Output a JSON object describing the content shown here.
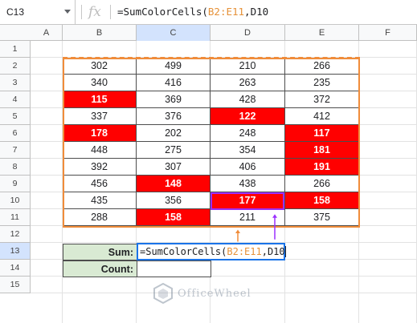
{
  "formula_bar": {
    "name_box": "C13",
    "fx_label": "fx",
    "formula_prefix": "=SumColorCells(",
    "formula_ref": "B2:E11",
    "formula_suffix": ",D10"
  },
  "columns": [
    "A",
    "B",
    "C",
    "D",
    "E",
    "F"
  ],
  "rows": [
    "1",
    "2",
    "3",
    "4",
    "5",
    "6",
    "7",
    "8",
    "9",
    "10",
    "11",
    "12",
    "13",
    "14",
    "15"
  ],
  "table": [
    [
      {
        "v": "302"
      },
      {
        "v": "499"
      },
      {
        "v": "210"
      },
      {
        "v": "266"
      }
    ],
    [
      {
        "v": "340"
      },
      {
        "v": "416"
      },
      {
        "v": "263"
      },
      {
        "v": "235"
      }
    ],
    [
      {
        "v": "115",
        "red": true
      },
      {
        "v": "369"
      },
      {
        "v": "428"
      },
      {
        "v": "372"
      }
    ],
    [
      {
        "v": "337"
      },
      {
        "v": "376"
      },
      {
        "v": "122",
        "red": true
      },
      {
        "v": "412"
      }
    ],
    [
      {
        "v": "178",
        "red": true
      },
      {
        "v": "202"
      },
      {
        "v": "248"
      },
      {
        "v": "117",
        "red": true
      }
    ],
    [
      {
        "v": "448"
      },
      {
        "v": "275"
      },
      {
        "v": "354"
      },
      {
        "v": "181",
        "red": true
      }
    ],
    [
      {
        "v": "392"
      },
      {
        "v": "307"
      },
      {
        "v": "406"
      },
      {
        "v": "191",
        "red": true
      }
    ],
    [
      {
        "v": "456"
      },
      {
        "v": "148",
        "red": true
      },
      {
        "v": "438"
      },
      {
        "v": "266"
      }
    ],
    [
      {
        "v": "435"
      },
      {
        "v": "356"
      },
      {
        "v": "177",
        "red": true
      },
      {
        "v": "158",
        "red": true
      }
    ],
    [
      {
        "v": "288"
      },
      {
        "v": "158",
        "red": true
      },
      {
        "v": "211"
      },
      {
        "v": "375"
      }
    ]
  ],
  "summary": {
    "sum_label": "Sum:",
    "count_label": "Count:",
    "edit_prefix": "=SumColorCells(",
    "edit_ref": "B2:E11",
    "edit_suffix": ",D10"
  },
  "colors": {
    "highlight": "#ff0000",
    "range_border": "#f08c3a",
    "reference_border": "#9b30ff",
    "label_fill": "#d9ead3",
    "active_border": "#1a73e8"
  },
  "watermark": {
    "text": "OfficeWheel"
  }
}
